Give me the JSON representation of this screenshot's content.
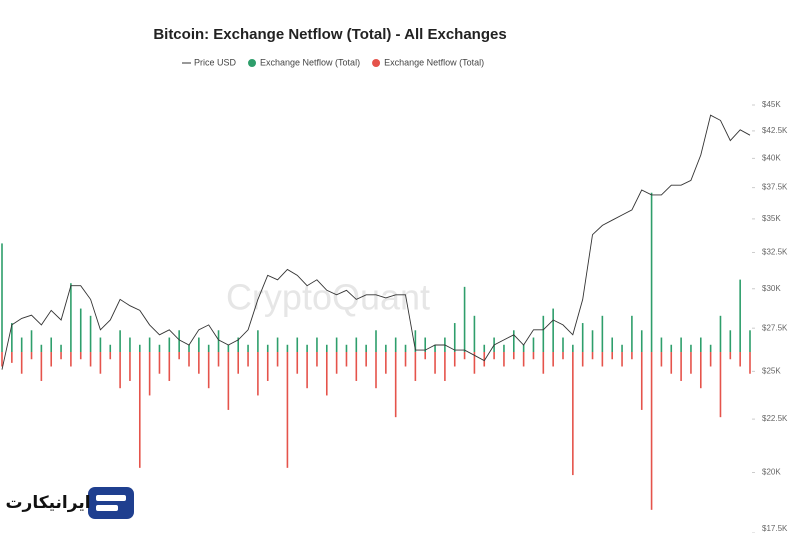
{
  "chart_data": {
    "type": "bar",
    "title": "Bitcoin: Exchange Netflow (Total) - All Exchanges",
    "watermark": "CryptoQuant",
    "brand": "ایرانیکارت",
    "ylim": [
      -25,
      35.5
    ],
    "y2lim": [
      17500,
      45000
    ],
    "y2log": true,
    "y2ticks": [
      {
        "value": 45000,
        "label": "$45K"
      },
      {
        "value": 42500,
        "label": "$42.5K"
      },
      {
        "value": 40000,
        "label": "$40K"
      },
      {
        "value": 37500,
        "label": "$37.5K"
      },
      {
        "value": 35000,
        "label": "$35K"
      },
      {
        "value": 32500,
        "label": "$32.5K"
      },
      {
        "value": 30000,
        "label": "$30K"
      },
      {
        "value": 27500,
        "label": "$27.5K"
      },
      {
        "value": 25000,
        "label": "$25K"
      },
      {
        "value": 22500,
        "label": "$22.5K"
      },
      {
        "value": 20000,
        "label": "$20K"
      },
      {
        "value": 17500,
        "label": "$17.5K"
      }
    ],
    "series": [
      {
        "name": "Price USD",
        "type": "line",
        "axis": "y2",
        "color": "#333333",
        "values": [
          25100,
          27700,
          28100,
          28300,
          27700,
          28600,
          28000,
          30200,
          30200,
          29300,
          27400,
          28000,
          29300,
          28900,
          28600,
          27700,
          27100,
          27400,
          26800,
          26500,
          27400,
          27700,
          26800,
          26500,
          26800,
          27400,
          29300,
          30900,
          30600,
          31300,
          30900,
          30200,
          30600,
          29900,
          29600,
          29900,
          29300,
          29600,
          29600,
          29400,
          29600,
          29600,
          26200,
          26200,
          26500,
          26500,
          26200,
          26200,
          25900,
          25600,
          26500,
          26800,
          27100,
          26500,
          27400,
          27400,
          28000,
          27700,
          27100,
          29300,
          33800,
          34500,
          34900,
          35300,
          35700,
          37300,
          36900,
          36900,
          37700,
          37700,
          38100,
          40300,
          44000,
          43500,
          41600,
          42600,
          42100
        ]
      },
      {
        "name": "Exchange Netflow (Total)",
        "type": "bar",
        "color": "#2e9e6b",
        "values": [
          15,
          4,
          2,
          3,
          1,
          2,
          1,
          9.5,
          6,
          5,
          2,
          1,
          3,
          2,
          1,
          2,
          1,
          2,
          3,
          1,
          2,
          1,
          3,
          1,
          2,
          1,
          3,
          1,
          2,
          1,
          2,
          1,
          2,
          1,
          2,
          1,
          2,
          1,
          3,
          1,
          2,
          1,
          3,
          2,
          1,
          2,
          4,
          9,
          5,
          1,
          2,
          1,
          3,
          1,
          2,
          5,
          6,
          2,
          1,
          4,
          3,
          5,
          2,
          1,
          5,
          3,
          22,
          2,
          1,
          2,
          1,
          2,
          1,
          5,
          3,
          10,
          3
        ]
      },
      {
        "name": "Exchange Netflow (Total)",
        "type": "bar",
        "color": "#e5534b",
        "values": [
          -2,
          -1.5,
          -3,
          -1,
          -4,
          -2,
          -1,
          -2,
          -1,
          -2,
          -3,
          -1,
          -5,
          -4,
          -16,
          -6,
          -3,
          -4,
          -1,
          -2,
          -3,
          -5,
          -2,
          -8,
          -3,
          -2,
          -6,
          -4,
          -2,
          -16,
          -3,
          -5,
          -2,
          -6,
          -3,
          -2,
          -4,
          -2,
          -5,
          -3,
          -9,
          -2,
          -4,
          -1,
          -3,
          -4,
          -2,
          -1,
          -3,
          -2,
          -1,
          -2,
          -1,
          -2,
          -1,
          -3,
          -2,
          -1,
          -17,
          -2,
          -1,
          -2,
          -1,
          -2,
          -1,
          -8,
          -21.8,
          -2,
          -3,
          -4,
          -3,
          -5,
          -2,
          -9,
          -1,
          -2,
          -3
        ]
      }
    ]
  }
}
